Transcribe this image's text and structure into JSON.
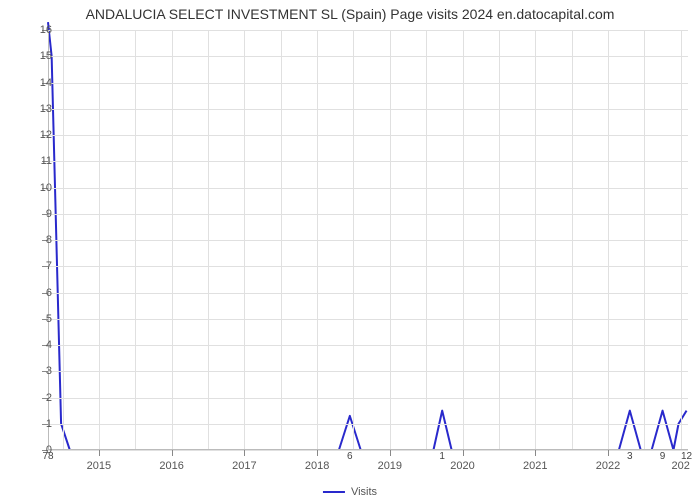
{
  "chart": {
    "type": "line",
    "title": "ANDALUCIA SELECT INVESTMENT SL (Spain) Page visits 2024 en.datocapital.com",
    "title_fontsize": 14,
    "title_color": "#333333",
    "background_color": "#ffffff",
    "grid_color": "#e0e0e0",
    "axis_color": "#bbbbbb",
    "line_color": "#2929cc",
    "line_width": 2,
    "ylim": [
      0,
      16
    ],
    "ytick_step": 1,
    "yticks": [
      0,
      1,
      2,
      3,
      4,
      5,
      6,
      7,
      8,
      9,
      10,
      11,
      12,
      13,
      14,
      15,
      16
    ],
    "xlim": [
      2014.3,
      2023.1
    ],
    "x_major_ticks": [
      2015,
      2016,
      2017,
      2018,
      2019,
      2020,
      2021,
      2022
    ],
    "x_minor_gridlines": [
      2014.5,
      2015,
      2015.5,
      2016,
      2016.5,
      2017,
      2017.5,
      2018,
      2018.5,
      2019,
      2019.5,
      2020,
      2020.5,
      2021,
      2021.5,
      2022,
      2022.5,
      2023
    ],
    "legend_label": "Visits",
    "data_labels": [
      {
        "x": 2014.3,
        "y_pos": 0,
        "text": "78"
      },
      {
        "x": 2018.45,
        "y_pos": 0,
        "text": "6"
      },
      {
        "x": 2019.72,
        "y_pos": 0,
        "text": "1"
      },
      {
        "x": 2022.3,
        "y_pos": 0,
        "text": "3"
      },
      {
        "x": 2022.75,
        "y_pos": 0,
        "text": "9"
      },
      {
        "x": 2023.08,
        "y_pos": 0,
        "text": "12"
      }
    ],
    "series": {
      "x": [
        2014.3,
        2014.35,
        2014.48,
        2014.6,
        2015,
        2015.5,
        2016,
        2016.5,
        2017,
        2017.5,
        2018,
        2018.3,
        2018.45,
        2018.6,
        2019,
        2019.5,
        2019.6,
        2019.72,
        2019.85,
        2020.2,
        2020.5,
        2021,
        2021.5,
        2022,
        2022.15,
        2022.3,
        2022.45,
        2022.6,
        2022.75,
        2022.9,
        2022.97,
        2023.08
      ],
      "y": [
        16.3,
        15,
        1,
        0,
        0,
        0,
        0,
        0,
        0,
        0,
        0,
        0,
        1.3,
        0,
        0,
        0,
        0,
        1.5,
        0,
        0,
        0,
        0,
        0,
        0,
        0,
        1.5,
        0,
        0,
        1.5,
        0,
        1,
        1.5
      ]
    }
  }
}
